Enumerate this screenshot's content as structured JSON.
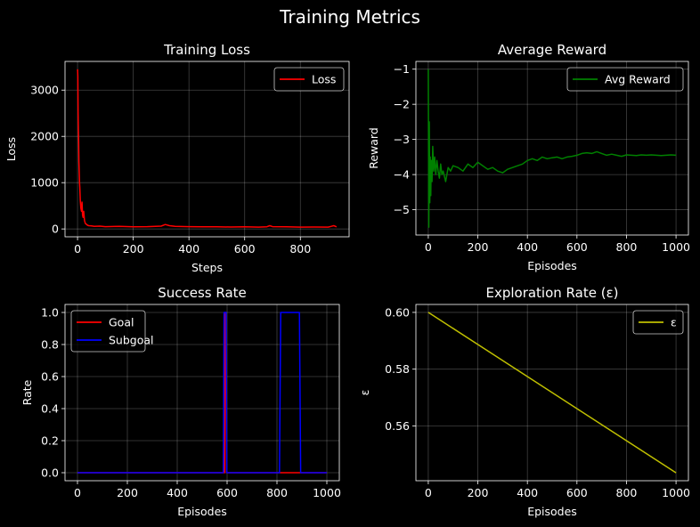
{
  "figure": {
    "suptitle": "Training Metrics"
  },
  "chart_data": [
    {
      "type": "line",
      "title": "Training Loss",
      "xlabel": "Steps",
      "ylabel": "Loss",
      "xlim": [
        -45,
        975
      ],
      "ylim": [
        -170,
        3620
      ],
      "xticks": [
        0,
        200,
        400,
        600,
        800
      ],
      "yticks": [
        0,
        1000,
        2000,
        3000
      ],
      "grid": true,
      "legend_position": "top-right",
      "series": [
        {
          "name": "Loss",
          "color": "#ff0000",
          "x": [
            0,
            1,
            2,
            3,
            4,
            5,
            6,
            7,
            8,
            9,
            10,
            11,
            12,
            14,
            16,
            18,
            20,
            22,
            25,
            28,
            32,
            36,
            40,
            50,
            60,
            80,
            100,
            150,
            200,
            250,
            300,
            315,
            330,
            350,
            400,
            450,
            500,
            550,
            600,
            650,
            680,
            690,
            700,
            750,
            800,
            850,
            900,
            910,
            920,
            930
          ],
          "y": [
            3450,
            3300,
            2500,
            2150,
            1900,
            1450,
            1200,
            1000,
            900,
            750,
            600,
            520,
            450,
            380,
            580,
            300,
            250,
            380,
            180,
            120,
            100,
            80,
            70,
            65,
            55,
            60,
            50,
            55,
            45,
            50,
            60,
            95,
            70,
            55,
            50,
            48,
            45,
            42,
            45,
            40,
            48,
            70,
            50,
            45,
            40,
            42,
            40,
            55,
            70,
            45
          ]
        }
      ]
    },
    {
      "type": "line",
      "title": "Average Reward",
      "xlabel": "Episodes",
      "ylabel": "Reward",
      "xlim": [
        -50,
        1050
      ],
      "ylim": [
        -5.72,
        -0.78
      ],
      "xticks": [
        0,
        200,
        400,
        600,
        800,
        1000
      ],
      "yticks": [
        -1,
        -2,
        -3,
        -4,
        -5
      ],
      "grid": true,
      "legend_position": "top-right",
      "series": [
        {
          "name": "Avg Reward",
          "color": "#008000",
          "x": [
            0,
            2,
            4,
            6,
            8,
            10,
            12,
            15,
            18,
            22,
            26,
            30,
            35,
            40,
            45,
            50,
            55,
            60,
            70,
            80,
            90,
            100,
            120,
            140,
            160,
            180,
            200,
            220,
            240,
            260,
            280,
            300,
            320,
            340,
            360,
            380,
            400,
            420,
            440,
            460,
            480,
            500,
            520,
            540,
            560,
            580,
            600,
            620,
            640,
            660,
            680,
            700,
            720,
            740,
            760,
            780,
            800,
            820,
            840,
            860,
            880,
            900,
            920,
            940,
            960,
            980,
            1000
          ],
          "y": [
            -1.0,
            -5.5,
            -2.5,
            -4.8,
            -3.5,
            -4.6,
            -3.6,
            -4.2,
            -3.2,
            -3.9,
            -3.5,
            -4.0,
            -3.6,
            -3.9,
            -4.1,
            -3.7,
            -4.0,
            -3.9,
            -4.2,
            -3.8,
            -3.9,
            -3.75,
            -3.8,
            -3.9,
            -3.7,
            -3.8,
            -3.65,
            -3.75,
            -3.85,
            -3.8,
            -3.9,
            -3.95,
            -3.85,
            -3.8,
            -3.75,
            -3.7,
            -3.6,
            -3.55,
            -3.6,
            -3.5,
            -3.55,
            -3.52,
            -3.5,
            -3.55,
            -3.5,
            -3.48,
            -3.45,
            -3.4,
            -3.38,
            -3.4,
            -3.35,
            -3.4,
            -3.45,
            -3.42,
            -3.45,
            -3.48,
            -3.44,
            -3.45,
            -3.46,
            -3.44,
            -3.45,
            -3.44,
            -3.45,
            -3.46,
            -3.45,
            -3.44,
            -3.45
          ]
        }
      ]
    },
    {
      "type": "line",
      "title": "Success Rate",
      "xlabel": "Episodes",
      "ylabel": "Rate",
      "xlim": [
        -50,
        1050
      ],
      "ylim": [
        -0.05,
        1.05
      ],
      "xticks": [
        0,
        200,
        400,
        600,
        800,
        1000
      ],
      "yticks": [
        0.0,
        0.2,
        0.4,
        0.6,
        0.8,
        1.0
      ],
      "grid": true,
      "legend_position": "top-left",
      "series": [
        {
          "name": "Goal",
          "color": "#ff0000",
          "x": [
            0,
            590,
            592,
            595,
            598,
            1000
          ],
          "y": [
            0,
            0,
            1,
            1,
            0,
            0
          ]
        },
        {
          "name": "Subgoal",
          "color": "#0000ff",
          "x": [
            0,
            585,
            588,
            596,
            599,
            810,
            815,
            890,
            895,
            1000
          ],
          "y": [
            0,
            0,
            1,
            1,
            0,
            0,
            1,
            1,
            0,
            0
          ]
        }
      ]
    },
    {
      "type": "line",
      "title": "Exploration Rate (ε)",
      "xlabel": "Episodes",
      "ylabel": "ε",
      "xlim": [
        -50,
        1050
      ],
      "ylim": [
        0.5407,
        0.6028
      ],
      "xticks": [
        0,
        200,
        400,
        600,
        800,
        1000
      ],
      "yticks": [
        0.56,
        0.58,
        0.6
      ],
      "grid": true,
      "legend_position": "top-right",
      "series": [
        {
          "name": "ε",
          "color": "#bfbf00",
          "x": [
            0,
            1000
          ],
          "y": [
            0.6,
            0.5435
          ]
        }
      ]
    }
  ]
}
